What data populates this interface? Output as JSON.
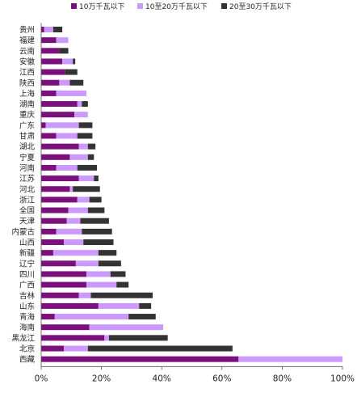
{
  "chart_data": {
    "type": "bar",
    "orientation": "horizontal",
    "stacked": true,
    "categories": [
      "贵州",
      "福建",
      "云南",
      "安徽",
      "江西",
      "陕西",
      "上海",
      "湖南",
      "重庆",
      "广东",
      "甘肃",
      "湖北",
      "宁夏",
      "河南",
      "江苏",
      "河北",
      "浙江",
      "全国",
      "天津",
      "内蒙古",
      "山西",
      "新疆",
      "辽宁",
      "四川",
      "广西",
      "吉林",
      "山东",
      "青海",
      "海南",
      "黑龙江",
      "北京",
      "西藏"
    ],
    "series": [
      {
        "name": "10万千瓦以下",
        "color": "#7b0f7b",
        "values": [
          1,
          5,
          6,
          7,
          8,
          6,
          5,
          12,
          11,
          1.5,
          5,
          12.5,
          9.5,
          5,
          12.5,
          9.5,
          12,
          9,
          8.5,
          5,
          7.5,
          4,
          11.5,
          15,
          15,
          12.5,
          19,
          4.5,
          16,
          21,
          7.5,
          65.5
        ]
      },
      {
        "name": "10至20万千瓦以下",
        "color": "#cc99ff",
        "values": [
          3,
          4,
          0,
          3.5,
          0,
          3.5,
          10,
          1.5,
          4.5,
          11,
          7,
          3,
          6,
          7,
          5,
          1,
          4,
          6.5,
          4.5,
          8.5,
          6.5,
          15,
          7.5,
          8,
          10,
          4,
          13.5,
          24.5,
          24.5,
          1.5,
          8,
          34.5
        ]
      },
      {
        "name": "20至30万千瓦以下",
        "color": "#333333",
        "values": [
          3,
          0,
          3,
          0.8,
          4,
          4.5,
          0,
          2,
          0,
          4.5,
          5,
          2.5,
          2,
          6.5,
          1.5,
          9,
          4,
          5.5,
          9.5,
          10,
          10,
          6,
          7.5,
          5,
          4,
          20.5,
          4,
          9,
          0,
          19.5,
          48,
          0
        ]
      }
    ],
    "xlim": [
      0,
      100
    ],
    "xticks": [
      0,
      20,
      40,
      60,
      80,
      100
    ],
    "xtick_labels": [
      "0%",
      "20%",
      "40%",
      "60%",
      "80%",
      "100%"
    ],
    "grid": false,
    "legend_position": "top"
  }
}
